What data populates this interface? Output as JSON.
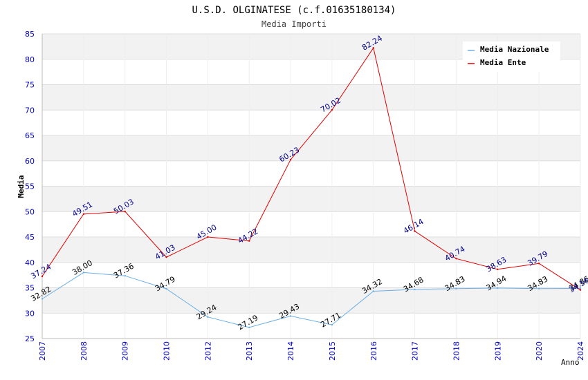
{
  "chart_data": {
    "type": "line",
    "title": "U.S.D. OLGINATESE (c.f.01635180134)",
    "subtitle": "Media Importi",
    "xlabel": "Anno",
    "ylabel": "Media",
    "ylim": [
      25,
      85
    ],
    "yticks": [
      "25",
      "30",
      "35",
      "40",
      "45",
      "50",
      "55",
      "60",
      "65",
      "70",
      "75",
      "80",
      "85"
    ],
    "categories": [
      "2007",
      "2008",
      "2009",
      "2010",
      "2012",
      "2013",
      "2014",
      "2015",
      "2016",
      "2017",
      "2018",
      "2019",
      "2020",
      "2024"
    ],
    "legend_position": "top-right",
    "series": [
      {
        "name": "Media Nazionale",
        "color": "#6aaee6",
        "label_color": "#000000",
        "values": [
          32.82,
          38.0,
          37.36,
          34.79,
          29.24,
          27.19,
          29.43,
          27.71,
          34.32,
          34.68,
          34.83,
          34.94,
          34.83,
          34.86
        ],
        "labels": [
          "32.82",
          "38.00",
          "37.36",
          "34.79",
          "29.24",
          "27.19",
          "29.43",
          "27.71",
          "34.32",
          "34.68",
          "34.83",
          "34.94",
          "34.83",
          "34.86"
        ]
      },
      {
        "name": "Media Ente",
        "color": "#e00000",
        "label_color": "#00008b",
        "values": [
          37.24,
          49.51,
          50.03,
          41.03,
          45.0,
          44.22,
          60.23,
          70.02,
          82.24,
          46.14,
          40.74,
          38.63,
          39.79,
          34.56
        ],
        "labels": [
          "37.24",
          "49.51",
          "50.03",
          "41.03",
          "45.00",
          "44.22",
          "60.23",
          "70.02",
          "82.24",
          "46.14",
          "40.74",
          "38.63",
          "39.79",
          "34.56"
        ]
      }
    ],
    "colors": {
      "axis_text": "#0000cc",
      "band": "#f2f2f2",
      "grid": "#dddddd"
    }
  }
}
